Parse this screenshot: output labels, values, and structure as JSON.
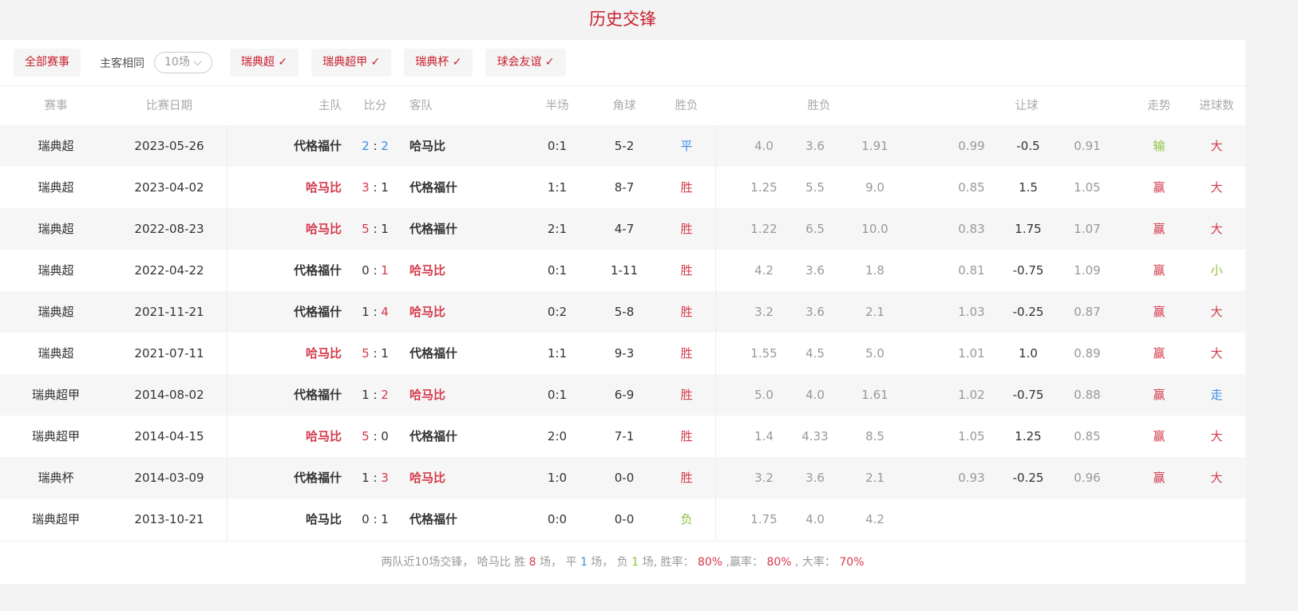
{
  "title": "历史交锋",
  "filters": {
    "all": "全部赛事",
    "same_label": "主客相同",
    "count_select": "10场",
    "chips": [
      "瑞典超",
      "瑞典超甲",
      "瑞典杯",
      "球会友谊"
    ]
  },
  "headers": {
    "league": "赛事",
    "date": "比赛日期",
    "home": "主队",
    "score": "比分",
    "away": "客队",
    "half": "半场",
    "corner": "角球",
    "result": "胜负",
    "odds": "胜负",
    "handicap": "让球",
    "trend": "走势",
    "goals": "进球数"
  },
  "colors": {
    "accent": "#c8202f",
    "win": "#d43a4a",
    "draw": "#3a8ee6",
    "lose": "#8ac43a"
  },
  "rows": [
    {
      "league": "瑞典超",
      "date": "2023-05-26",
      "home": "代格福什",
      "hs": "2",
      "as": "2",
      "away": "哈马比",
      "hl": "draw",
      "half": "0:1",
      "corner": "5-2",
      "result": "平",
      "o1": "4.0",
      "o2": "3.6",
      "o3": "1.91",
      "h1": "0.99",
      "h2": "-0.5",
      "h3": "0.91",
      "trend": "输",
      "goals": "大"
    },
    {
      "league": "瑞典超",
      "date": "2023-04-02",
      "home": "哈马比",
      "hs": "3",
      "as": "1",
      "away": "代格福什",
      "hl": "home",
      "half": "1:1",
      "corner": "8-7",
      "result": "胜",
      "o1": "1.25",
      "o2": "5.5",
      "o3": "9.0",
      "h1": "0.85",
      "h2": "1.5",
      "h3": "1.05",
      "trend": "赢",
      "goals": "大"
    },
    {
      "league": "瑞典超",
      "date": "2022-08-23",
      "home": "哈马比",
      "hs": "5",
      "as": "1",
      "away": "代格福什",
      "hl": "home",
      "half": "2:1",
      "corner": "4-7",
      "result": "胜",
      "o1": "1.22",
      "o2": "6.5",
      "o3": "10.0",
      "h1": "0.83",
      "h2": "1.75",
      "h3": "1.07",
      "trend": "赢",
      "goals": "大"
    },
    {
      "league": "瑞典超",
      "date": "2022-04-22",
      "home": "代格福什",
      "hs": "0",
      "as": "1",
      "away": "哈马比",
      "hl": "away",
      "half": "0:1",
      "corner": "1-11",
      "result": "胜",
      "o1": "4.2",
      "o2": "3.6",
      "o3": "1.8",
      "h1": "0.81",
      "h2": "-0.75",
      "h3": "1.09",
      "trend": "赢",
      "goals": "小"
    },
    {
      "league": "瑞典超",
      "date": "2021-11-21",
      "home": "代格福什",
      "hs": "1",
      "as": "4",
      "away": "哈马比",
      "hl": "away",
      "half": "0:2",
      "corner": "5-8",
      "result": "胜",
      "o1": "3.2",
      "o2": "3.6",
      "o3": "2.1",
      "h1": "1.03",
      "h2": "-0.25",
      "h3": "0.87",
      "trend": "赢",
      "goals": "大"
    },
    {
      "league": "瑞典超",
      "date": "2021-07-11",
      "home": "哈马比",
      "hs": "5",
      "as": "1",
      "away": "代格福什",
      "hl": "home",
      "half": "1:1",
      "corner": "9-3",
      "result": "胜",
      "o1": "1.55",
      "o2": "4.5",
      "o3": "5.0",
      "h1": "1.01",
      "h2": "1.0",
      "h3": "0.89",
      "trend": "赢",
      "goals": "大"
    },
    {
      "league": "瑞典超甲",
      "date": "2014-08-02",
      "home": "代格福什",
      "hs": "1",
      "as": "2",
      "away": "哈马比",
      "hl": "away",
      "half": "0:1",
      "corner": "6-9",
      "result": "胜",
      "o1": "5.0",
      "o2": "4.0",
      "o3": "1.61",
      "h1": "1.02",
      "h2": "-0.75",
      "h3": "0.88",
      "trend": "赢",
      "goals": "走"
    },
    {
      "league": "瑞典超甲",
      "date": "2014-04-15",
      "home": "哈马比",
      "hs": "5",
      "as": "0",
      "away": "代格福什",
      "hl": "home",
      "half": "2:0",
      "corner": "7-1",
      "result": "胜",
      "o1": "1.4",
      "o2": "4.33",
      "o3": "8.5",
      "h1": "1.05",
      "h2": "1.25",
      "h3": "0.85",
      "trend": "赢",
      "goals": "大"
    },
    {
      "league": "瑞典杯",
      "date": "2014-03-09",
      "home": "代格福什",
      "hs": "1",
      "as": "3",
      "away": "哈马比",
      "hl": "away",
      "half": "1:0",
      "corner": "0-0",
      "result": "胜",
      "o1": "3.2",
      "o2": "3.6",
      "o3": "2.1",
      "h1": "0.93",
      "h2": "-0.25",
      "h3": "0.96",
      "trend": "赢",
      "goals": "大"
    },
    {
      "league": "瑞典超甲",
      "date": "2013-10-21",
      "home": "哈马比",
      "hs": "0",
      "as": "1",
      "away": "代格福什",
      "hl": "none",
      "half": "0:0",
      "corner": "0-0",
      "result": "负",
      "o1": "1.75",
      "o2": "4.0",
      "o3": "4.2",
      "h1": "",
      "h2": "",
      "h3": "",
      "trend": "",
      "goals": ""
    }
  ],
  "summary": {
    "p1": "两队近10场交锋，  哈马比 胜 ",
    "wins": "8",
    "p2": " 场，  平 ",
    "draws": "1",
    "p3": " 场，  负 ",
    "losses": "1",
    "p4": " 场, 胜率：  ",
    "win_rate": "80%",
    "p5": " ,赢率：  ",
    "cover_rate": "80%",
    "p6": " , 大率：  ",
    "over_rate": "70%"
  }
}
